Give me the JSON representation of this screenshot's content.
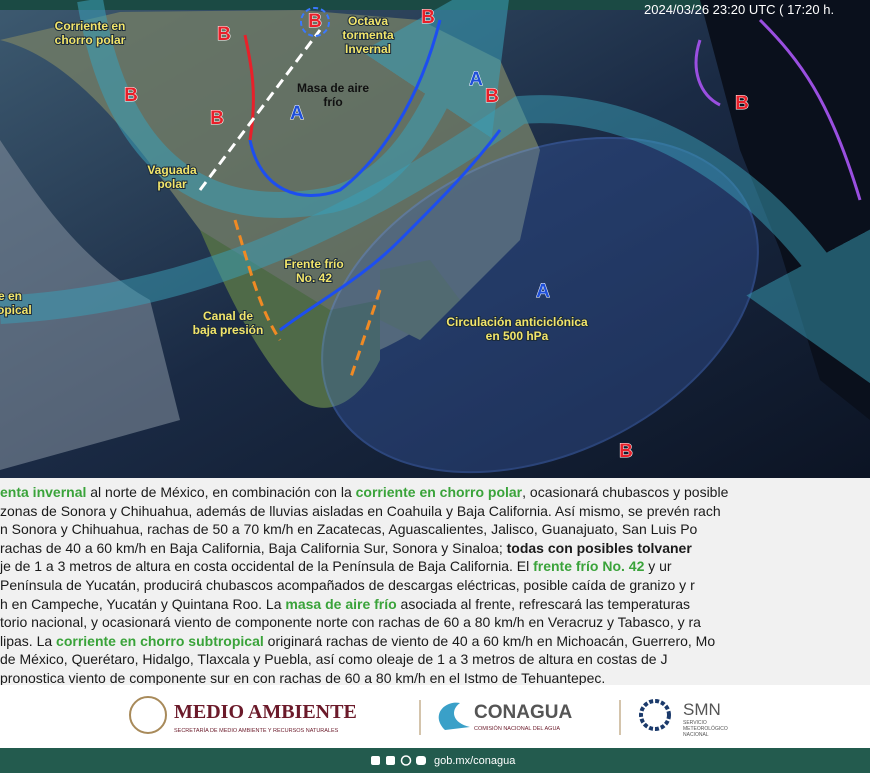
{
  "timestamp": "2024/03/26 23:20 UTC ( 17:20 h.",
  "map_labels": [
    {
      "lines": [
        "Corriente en",
        "chorro polar"
      ]
    },
    {
      "lines": [
        "Octava",
        "tormenta",
        "Invernal"
      ]
    },
    {
      "lines": [
        "Masa de aire",
        "frío"
      ]
    },
    {
      "lines": [
        "Vaguada",
        "polar"
      ]
    },
    {
      "lines": [
        "Frente frío",
        "No. 42"
      ]
    },
    {
      "lines": [
        "Canal de",
        "baja presión"
      ]
    },
    {
      "lines": [
        "Circulación anticiclónica",
        "en 500 hPa"
      ]
    },
    {
      "lines": [
        "e en",
        "tropical"
      ]
    }
  ],
  "pressure_centers": [
    {
      "label": "B",
      "color": "#e8202a"
    },
    {
      "label": "B",
      "color": "#e8202a"
    },
    {
      "label": "B",
      "color": "#e8202a"
    },
    {
      "label": "A",
      "color": "#1f4fd8"
    },
    {
      "label": "A",
      "color": "#1f4fd8"
    },
    {
      "label": "B",
      "color": "#e8202a"
    },
    {
      "label": "B",
      "color": "#e8202a"
    },
    {
      "label": "A",
      "color": "#1f4fd8"
    },
    {
      "label": "B",
      "color": "#e8202a"
    },
    {
      "label": "B",
      "color": "#e8202a"
    },
    {
      "label": "B",
      "color": "#e8202a"
    }
  ],
  "paragraph": [
    [
      {
        "text": "enta invernal",
        "style": "green"
      },
      {
        "text": " al norte de México, en combinación con la "
      },
      {
        "text": "corriente en chorro polar",
        "style": "green"
      },
      {
        "text": ", ocasionará chubascos y posible"
      }
    ],
    [
      {
        "text": "zonas de Sonora y Chihuahua, además de lluvias aisladas en Coahuila y Baja California. Así mismo, se prevén rach"
      }
    ],
    [
      {
        "text": "n Sonora y Chihuahua, rachas de 50 a 70 km/h en Zacatecas, Aguascalientes, Jalisco, Guanajuato, San Luis Po"
      }
    ],
    [
      {
        "text": "rachas de 40 a 60 km/h en Baja California, Baja California Sur, Sonora y Sinaloa; "
      },
      {
        "text": "todas con posibles tolvaner",
        "style": "bold"
      }
    ],
    [
      {
        "text": "je de 1 a 3 metros de altura en costa occidental de la Península de Baja California. El "
      },
      {
        "text": "frente frío No. 42",
        "style": "green"
      },
      {
        "text": " y ur"
      }
    ],
    [
      {
        "text": " Península de Yucatán, producirá chubascos acompañados de descargas eléctricas, posible caída de granizo y r"
      }
    ],
    [
      {
        "text": "h en Campeche, Yucatán y Quintana Roo. La "
      },
      {
        "text": "masa de aire frío",
        "style": "green"
      },
      {
        "text": " asociada al frente, refrescará las temperaturas"
      }
    ],
    [
      {
        "text": "torio nacional, y ocasionará viento de componente norte con rachas de 60 a 80 km/h en Veracruz y Tabasco, y ra"
      }
    ],
    [
      {
        "text": "lipas. La "
      },
      {
        "text": "corriente en chorro subtropical",
        "style": "green"
      },
      {
        "text": " originará rachas de viento de 40 a 60 km/h en Michoacán, Guerrero, Mo"
      }
    ],
    [
      {
        "text": " de México, Querétaro, Hidalgo, Tlaxcala y Puebla, así como oleaje de 1 a 3 metros de altura en costas de J"
      }
    ],
    [
      {
        "text": "pronostica viento de componente sur en con rachas de 60 a 80 km/h en el Istmo de Tehuantepec."
      }
    ]
  ],
  "logos": {
    "semarnat": {
      "name": "MEDIO AMBIENTE",
      "sub": "SECRETARÍA DE MEDIO AMBIENTE Y RECURSOS NATURALES"
    },
    "conagua": {
      "name": "CONAGUA",
      "sub": "COMISIÓN NACIONAL DEL AGUA"
    },
    "smn": {
      "name": "SMN",
      "sub": [
        "SERVICIO",
        "METEOROLÓGICO",
        "NACIONAL"
      ]
    }
  },
  "footer": {
    "url": "gob.mx/conagua"
  }
}
